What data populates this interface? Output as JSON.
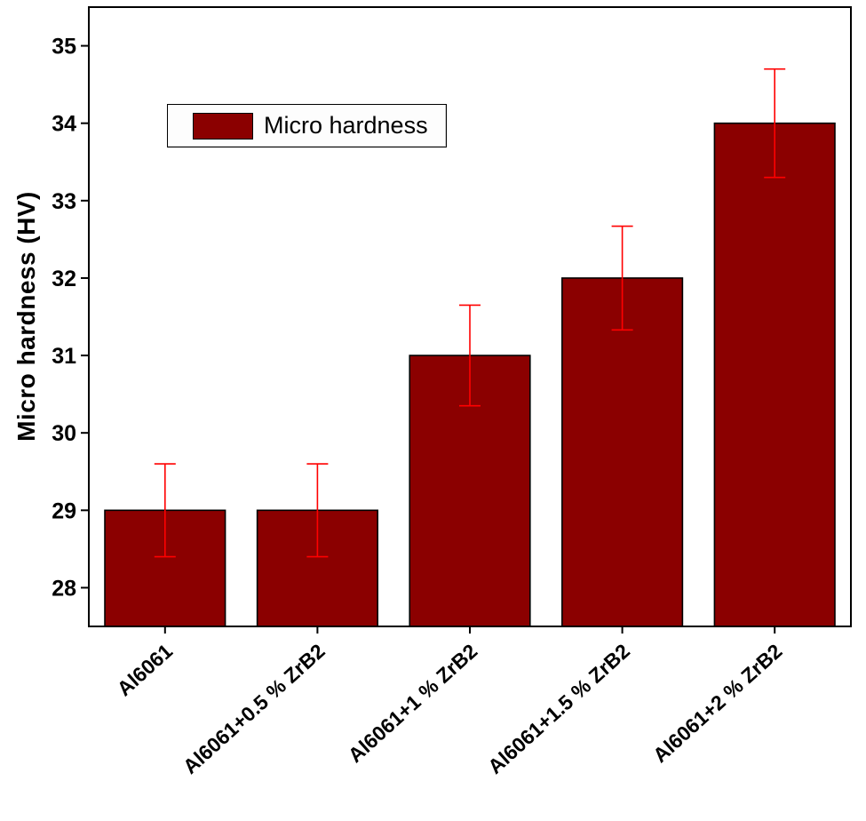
{
  "chart_data": {
    "type": "bar",
    "title": "",
    "categories": [
      "Al6061",
      "Al6061+0.5 % ZrB2",
      "Al6061+1 % ZrB2",
      "Al6061+1.5 % ZrB2",
      "Al6061+2 % ZrB2"
    ],
    "values": [
      29,
      29,
      31,
      32,
      34
    ],
    "errors": [
      0.6,
      0.6,
      0.65,
      0.67,
      0.7
    ],
    "xlabel": "",
    "ylabel": "Micro hardness (HV)",
    "ylim": [
      27.5,
      35.5
    ],
    "yticks": [
      28,
      29,
      30,
      31,
      32,
      33,
      34,
      35
    ],
    "legend": "Micro hardness",
    "legend_position": "top-left",
    "grid": false,
    "bar_color": "#8b0000",
    "bar_edge_color": "#000000",
    "error_color": "#ff0000",
    "axis_color": "#000000"
  }
}
